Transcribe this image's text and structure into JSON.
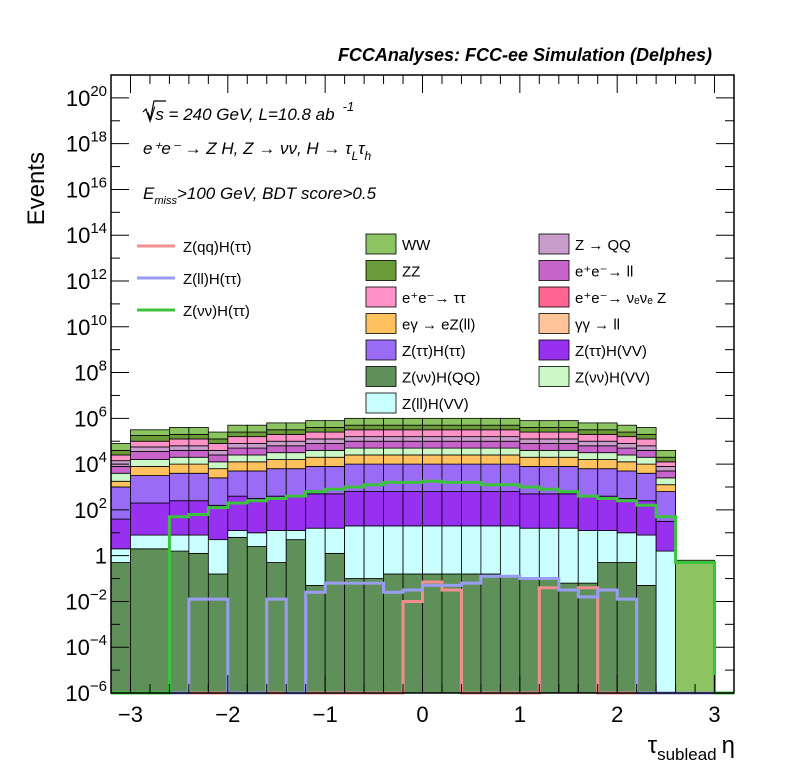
{
  "chart_data": {
    "type": "histogram-stacked-log",
    "title": "FCCAnalyses: FCC-ee Simulation (Delphes)",
    "xlabel": "τ_sublead η",
    "xlabel_main": "τ",
    "xlabel_sub": "sublead",
    "xlabel_tail": "η",
    "ylabel": "Events",
    "xlim": [
      -3.2,
      3.2
    ],
    "ylim_log10": [
      -6,
      21
    ],
    "y_scale": "log",
    "x_ticks": [
      "−3",
      "−2",
      "−1",
      "0",
      "1",
      "2",
      "3"
    ],
    "x_tick_values": [
      -3,
      -2,
      -1,
      0,
      1,
      2,
      3
    ],
    "y_ticks": [
      {
        "exp": -6,
        "label": "10",
        "sup": "−6"
      },
      {
        "exp": -4,
        "label": "10",
        "sup": "−4"
      },
      {
        "exp": -2,
        "label": "10",
        "sup": "−2"
      },
      {
        "exp": 0,
        "label": "1",
        "sup": ""
      },
      {
        "exp": 2,
        "label": "10",
        "sup": "2"
      },
      {
        "exp": 4,
        "label": "10",
        "sup": "4"
      },
      {
        "exp": 6,
        "label": "10",
        "sup": "6"
      },
      {
        "exp": 8,
        "label": "10",
        "sup": "8"
      },
      {
        "exp": 10,
        "label": "10",
        "sup": "10"
      },
      {
        "exp": 12,
        "label": "10",
        "sup": "12"
      },
      {
        "exp": 14,
        "label": "10",
        "sup": "14"
      },
      {
        "exp": 16,
        "label": "10",
        "sup": "16"
      },
      {
        "exp": 18,
        "label": "10",
        "sup": "18"
      },
      {
        "exp": 20,
        "label": "10",
        "sup": "20"
      }
    ],
    "annotations": {
      "line1": "√s = 240 GeV, L=10.8 ab",
      "line1_sup": "-1",
      "line2": "e⁺e⁻ → Z H, Z → νν, H → τ",
      "line2_sub1": "L",
      "line2_mid": "τ",
      "line2_sub2": "h",
      "line3_main": "E",
      "line3_sub": "miss",
      "line3_tail": ">100 GeV, BDT score>0.5"
    },
    "bin_edges": [
      -3.2,
      -3.0,
      -2.6,
      -2.4,
      -2.2,
      -2.0,
      -1.8,
      -1.6,
      -1.4,
      -1.2,
      -1.0,
      -0.8,
      -0.6,
      -0.4,
      -0.2,
      0.0,
      0.2,
      0.4,
      0.6,
      0.8,
      1.0,
      1.2,
      1.4,
      1.6,
      1.8,
      2.0,
      2.2,
      2.4,
      2.6,
      3.0,
      3.2
    ],
    "stack_order": [
      "Z(νν)H(QQ)",
      "Z(ll)H(VV)",
      "Z(ττ)H(VV)",
      "Z(ττ)H(ττ)",
      "eγ → eZ(ll)",
      "Z(νν)H(VV)",
      "e⁺e⁻→ ll",
      "Z → QQ",
      "e⁺e⁻→ ττ",
      "ZZ",
      "WW"
    ],
    "stack_cumulative_log10": [
      [
        -6,
        -0.3,
        0.3,
        1.6,
        3.0,
        3.25,
        3.6,
        3.9,
        4.15,
        4.4,
        4.6,
        4.9
      ],
      [
        -6,
        0.3,
        0.9,
        2.3,
        3.5,
        3.9,
        4.2,
        4.55,
        4.75,
        5.0,
        5.25,
        5.5
      ],
      [
        -6,
        0.2,
        0.9,
        2.4,
        3.6,
        4.0,
        4.3,
        4.6,
        4.8,
        5.1,
        5.3,
        5.6
      ],
      [
        -6,
        0.1,
        0.9,
        2.4,
        3.6,
        4.0,
        4.3,
        4.6,
        4.8,
        5.1,
        5.3,
        5.6
      ],
      [
        -6,
        -0.8,
        0.7,
        2.2,
        3.4,
        3.8,
        4.1,
        4.4,
        4.6,
        4.9,
        5.1,
        5.4
      ],
      [
        -6,
        0.8,
        1.1,
        2.6,
        3.7,
        4.1,
        4.4,
        4.7,
        4.9,
        5.2,
        5.4,
        5.7
      ],
      [
        -6,
        0.4,
        1.0,
        2.5,
        3.7,
        4.1,
        4.4,
        4.7,
        4.9,
        5.2,
        5.4,
        5.7
      ],
      [
        -6,
        -0.3,
        1.1,
        2.6,
        3.8,
        4.2,
        4.5,
        4.8,
        5.0,
        5.3,
        5.5,
        5.8
      ],
      [
        -6,
        0.7,
        1.1,
        2.6,
        3.8,
        4.2,
        4.5,
        4.8,
        5.0,
        5.3,
        5.5,
        5.8
      ],
      [
        -6,
        -1.3,
        1.2,
        2.7,
        3.9,
        4.3,
        4.6,
        4.9,
        5.1,
        5.4,
        5.6,
        5.9
      ],
      [
        -6,
        0.1,
        1.2,
        2.7,
        3.9,
        4.3,
        4.6,
        4.9,
        5.1,
        5.4,
        5.6,
        5.9
      ],
      [
        -6,
        -1.0,
        1.3,
        2.8,
        4.0,
        4.4,
        4.7,
        5.0,
        5.2,
        5.5,
        5.7,
        6.0
      ],
      [
        -6,
        -1.0,
        1.3,
        2.8,
        4.0,
        4.4,
        4.7,
        5.0,
        5.2,
        5.5,
        5.7,
        6.0
      ],
      [
        -6,
        -0.8,
        1.3,
        2.8,
        4.0,
        4.4,
        4.7,
        5.0,
        5.2,
        5.5,
        5.7,
        6.0
      ],
      [
        -6,
        -0.8,
        1.3,
        2.8,
        4.0,
        4.4,
        4.7,
        5.0,
        5.2,
        5.5,
        5.7,
        6.0
      ],
      [
        -6,
        -0.8,
        1.3,
        2.8,
        4.0,
        4.4,
        4.7,
        5.0,
        5.2,
        5.5,
        5.7,
        6.0
      ],
      [
        -6,
        -0.8,
        1.3,
        2.8,
        4.0,
        4.4,
        4.7,
        5.0,
        5.2,
        5.5,
        5.7,
        6.0
      ],
      [
        -6,
        -0.8,
        1.3,
        2.8,
        4.0,
        4.4,
        4.7,
        5.0,
        5.2,
        5.5,
        5.7,
        6.0
      ],
      [
        -6,
        -0.8,
        1.3,
        2.8,
        4.0,
        4.4,
        4.7,
        5.0,
        5.2,
        5.5,
        5.7,
        6.0
      ],
      [
        -6,
        -0.9,
        1.3,
        2.8,
        4.0,
        4.4,
        4.7,
        5.0,
        5.2,
        5.5,
        5.7,
        6.0
      ],
      [
        -6,
        -1.0,
        1.2,
        2.7,
        3.9,
        4.3,
        4.6,
        4.9,
        5.1,
        5.4,
        5.6,
        5.9
      ],
      [
        -6,
        -1.0,
        1.2,
        2.7,
        3.9,
        4.3,
        4.6,
        4.9,
        5.1,
        5.4,
        5.6,
        5.9
      ],
      [
        -6,
        -1.2,
        1.2,
        2.7,
        3.9,
        4.3,
        4.6,
        4.9,
        5.1,
        5.4,
        5.6,
        5.9
      ],
      [
        -6,
        -1.2,
        1.1,
        2.6,
        3.8,
        4.2,
        4.5,
        4.8,
        5.0,
        5.3,
        5.5,
        5.8
      ],
      [
        -6,
        -0.3,
        1.1,
        2.6,
        3.8,
        4.2,
        4.5,
        4.8,
        5.0,
        5.3,
        5.5,
        5.8
      ],
      [
        -6,
        -0.3,
        1.0,
        2.5,
        3.7,
        4.1,
        4.4,
        4.7,
        4.9,
        5.2,
        5.4,
        5.7
      ],
      [
        -6,
        -1.3,
        0.9,
        2.4,
        3.6,
        4.0,
        4.3,
        4.6,
        4.8,
        5.1,
        5.3,
        5.6
      ],
      [
        -6,
        -6.0,
        0.2,
        1.5,
        2.8,
        3.1,
        3.4,
        3.7,
        3.9,
        4.1,
        4.3,
        4.6
      ],
      [
        -6,
        -6.0,
        -6.0,
        -6.0,
        -6.0,
        -6.0,
        -6.0,
        -6.0,
        -6.0,
        -6.0,
        -6.0,
        -0.2
      ],
      [
        -6,
        -6.0,
        -6.0,
        -6.0,
        -6.0,
        -6.0,
        -6.0,
        -6.0,
        -6.0,
        -6.0,
        -6.0,
        -6.0
      ]
    ],
    "stack_legend": [
      {
        "name": "WW",
        "color": "#8bc460"
      },
      {
        "name": "Z → QQ",
        "color": "#c89ccb"
      },
      {
        "name": "ZZ",
        "color": "#6b9a38"
      },
      {
        "name": "e⁺e⁻→ ll",
        "color": "#c764c9"
      },
      {
        "name": "e⁺e⁻→ ττ",
        "color": "#ff93c8"
      },
      {
        "name": "e⁺e⁻→ νₑνₑ Z",
        "color": "#ff6590"
      },
      {
        "name": "eγ → eZ(ll)",
        "color": "#ffc25e"
      },
      {
        "name": "γγ → ll",
        "color": "#ffc49a"
      },
      {
        "name": "Z(ττ)H(ττ)",
        "color": "#9a6cf5"
      },
      {
        "name": "Z(ττ)H(VV)",
        "color": "#9830f0"
      },
      {
        "name": "Z(νν)H(QQ)",
        "color": "#5f905a"
      },
      {
        "name": "Z(νν)H(VV)",
        "color": "#ccf7c6"
      },
      {
        "name": "Z(ll)H(VV)",
        "color": "#caffff"
      }
    ],
    "signals": [
      {
        "name": "Z(qq)H(ττ)",
        "color": "#f28e8e",
        "log10": [
          -6,
          -6,
          -6,
          -6,
          -6,
          -6,
          -6,
          -6,
          -6,
          -6,
          -6,
          -6,
          -6,
          -6,
          -2.0,
          -1.15,
          -1.5,
          -6,
          -6,
          -6,
          -6,
          -1.4,
          -1.5,
          -1.4,
          -6,
          -6,
          -6,
          -6,
          -6,
          -6
        ]
      },
      {
        "name": "Z(ll)H(ττ)",
        "color": "#9a9cf4",
        "log10": [
          -6,
          -6,
          -6,
          -1.9,
          -1.9,
          -6,
          -6,
          -1.9,
          -6,
          -1.6,
          -1.2,
          -1.2,
          -1.2,
          -1.6,
          -1.5,
          -1.3,
          -1.3,
          -1.2,
          -0.9,
          -0.9,
          -1.0,
          -1.0,
          -1.5,
          -1.8,
          -1.5,
          -1.9,
          -6,
          -6,
          -6,
          -6
        ]
      },
      {
        "name": "Z(νν)H(ττ)",
        "color": "#3cc23c",
        "log10": [
          -6,
          -6,
          1.7,
          1.8,
          2.1,
          2.3,
          2.4,
          2.5,
          2.6,
          2.8,
          2.9,
          3.0,
          3.1,
          3.2,
          3.2,
          3.25,
          3.2,
          3.2,
          3.1,
          3.1,
          3.0,
          2.9,
          2.8,
          2.6,
          2.5,
          2.4,
          2.2,
          1.7,
          -0.3,
          -6
        ]
      }
    ]
  }
}
